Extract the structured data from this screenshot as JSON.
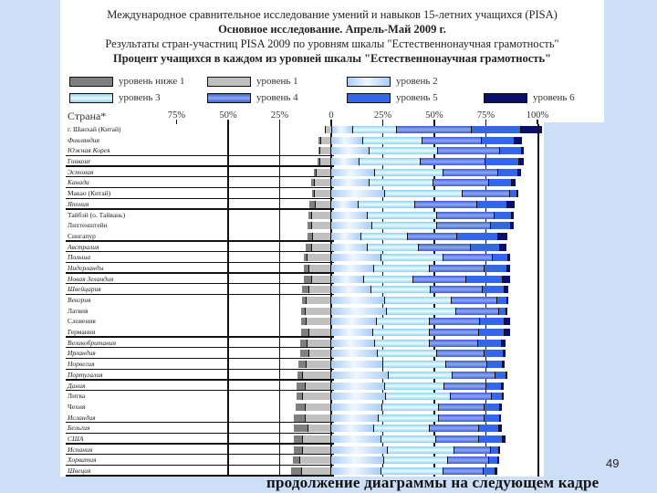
{
  "header": {
    "line1": "Международное сравнительное исследование умений и навыков 15-летних учащихся (PISA)",
    "line2": "Основное исследование. Апрель-Май 2009 г.",
    "line3": "Результаты стран-участниц PISA 2009 по уровням шкалы \"Естественнонаучная грамотность\"",
    "line4": "Процент учащихся в каждом из уровней шкалы \"Естественнонаучная грамотность\""
  },
  "legend": [
    {
      "label": "уровень ниже 1",
      "color": "#7f7f7f"
    },
    {
      "label": "уровень 1",
      "color": "#c0c0c0"
    },
    {
      "label": "уровень 2",
      "color": "#cfe3fb"
    },
    {
      "label": "уровень 3",
      "color": "#bdeaf8"
    },
    {
      "label": "уровень 4",
      "color": "#5d7fe0"
    },
    {
      "label": "уровень 5",
      "color": "#3466e8"
    },
    {
      "label": "уровень 6",
      "color": "#0a0f6e"
    }
  ],
  "axis": {
    "country_header": "Страна*",
    "ticks": [
      "75%",
      "50%",
      "25%",
      "0",
      "25%",
      "50%",
      "75%",
      "100%"
    ]
  },
  "page_number": "49",
  "footer_text": "продолжение диаграммы на следующем кадре",
  "chart_data": {
    "type": "bar",
    "subtype": "diverging-stacked-horizontal",
    "title": "Процент учащихся в каждом из уровней шкалы \"Естественнонаучная грамотность\"",
    "xlabel": "",
    "ylabel": "Страна*",
    "xlim": [
      -75,
      100
    ],
    "x_ticks": [
      "75%",
      "50%",
      "25%",
      "0",
      "25%",
      "50%",
      "75%",
      "100%"
    ],
    "legend_position": "top",
    "series_names": [
      "уровень ниже 1",
      "уровень 1",
      "уровень 2",
      "уровень 3",
      "уровень 4",
      "уровень 5",
      "уровень 6"
    ],
    "categories": [
      "г. Шанхай (Китай)",
      "Финляндия",
      "Южная Корея",
      "Гонконг",
      "Эстония",
      "Канада",
      "Макао (Китай)",
      "Япония",
      "Тайбэй (о. Тайвань)",
      "Лихтенштейн",
      "Сингапур",
      "Австралия",
      "Польша",
      "Нидерланды",
      "Новая Зеландия",
      "Швейцария",
      "Венгрия",
      "Латвия",
      "Словения",
      "Германия",
      "Великобритания",
      "Ирландия",
      "Норвегия",
      "Португалия",
      "Дания",
      "Литва",
      "Чехия",
      "Исландия",
      "Бельгия",
      "США",
      "Испания",
      "Хорватия",
      "Швеция"
    ],
    "italic": [
      false,
      true,
      true,
      false,
      true,
      true,
      false,
      true,
      false,
      false,
      false,
      true,
      true,
      true,
      true,
      true,
      true,
      false,
      false,
      false,
      true,
      true,
      true,
      true,
      true,
      false,
      false,
      true,
      true,
      true,
      true,
      true,
      true
    ],
    "separator_after": [
      false,
      false,
      true,
      true,
      true,
      true,
      true,
      true,
      false,
      false,
      true,
      true,
      true,
      true,
      true,
      true,
      false,
      false,
      false,
      true,
      true,
      true,
      true,
      true,
      true,
      false,
      false,
      true,
      true,
      true,
      true,
      true,
      true
    ],
    "series": [
      {
        "name": "уровень ниже 1",
        "values": [
          0.1,
          1.1,
          0.9,
          1.4,
          1.3,
          1.8,
          1.5,
          3.2,
          2.1,
          2.2,
          2.8,
          3.1,
          2.0,
          2.6,
          4.1,
          3.3,
          2.2,
          2.2,
          3.0,
          4.1,
          3.6,
          4.4,
          3.9,
          2.6,
          4.3,
          3.4,
          4.7,
          5.4,
          7.2,
          4.2,
          4.3,
          3.6,
          5.3
        ]
      },
      {
        "name": "уровень 1",
        "values": [
          3.1,
          4.9,
          5.4,
          5.2,
          7.0,
          7.8,
          8.0,
          7.5,
          9.1,
          9.3,
          8.7,
          9.5,
          11.3,
          10.6,
          9.2,
          10.8,
          12.0,
          12.5,
          11.8,
          10.7,
          11.4,
          10.7,
          11.9,
          13.9,
          12.3,
          13.6,
          12.6,
          12.6,
          10.9,
          13.9,
          13.9,
          14.9,
          14.0
        ]
      },
      {
        "name": "уровень 2",
        "values": [
          10.5,
          15.3,
          18.5,
          13.9,
          21.1,
          18.6,
          26.2,
          13.3,
          17.8,
          20.1,
          14.4,
          17.6,
          24.5,
          20.8,
          16.0,
          19.5,
          26.0,
          27.2,
          22.0,
          20.4,
          21.1,
          22.6,
          25.4,
          27.9,
          25.9,
          26.7,
          24.8,
          23.2,
          20.7,
          24.4,
          27.5,
          25.8,
          24.4
        ]
      },
      {
        "name": "уровень 3",
        "values": [
          21.0,
          28.8,
          33.1,
          29.4,
          33.5,
          31.1,
          37.4,
          27.4,
          33.5,
          31.1,
          22.7,
          25.0,
          30.0,
          27.2,
          23.9,
          28.7,
          32.6,
          33.5,
          25.9,
          27.3,
          26.6,
          28.6,
          30.3,
          31.0,
          28.8,
          31.1,
          27.5,
          29.1,
          27.0,
          26.7,
          32.3,
          30.8,
          30.2
        ]
      },
      {
        "name": "уровень 4",
        "values": [
          36.1,
          28.8,
          30.2,
          31.7,
          26.5,
          26.7,
          23.0,
          30.2,
          28.1,
          26.2,
          24.0,
          25.0,
          23.8,
          26.2,
          25.5,
          25.4,
          21.8,
          20.6,
          24.4,
          24.2,
          23.5,
          23.3,
          20.2,
          20.9,
          20.6,
          20.2,
          22.1,
          22.0,
          24.0,
          20.8,
          17.6,
          19.8,
          19.1
        ]
      },
      {
        "name": "уровень 5",
        "values": [
          24.3,
          16.2,
          10.7,
          16.2,
          9.6,
          11.4,
          3.7,
          14.7,
          8.2,
          9.9,
          19.9,
          14.4,
          7.6,
          11.4,
          17.6,
          10.7,
          4.9,
          3.7,
          11.6,
          12.2,
          11.5,
          9.0,
          7.5,
          5.0,
          7.4,
          5.4,
          7.5,
          7.4,
          9.8,
          11.3,
          4.1,
          4.6,
          6.0
        ]
      },
      {
        "name": "уровень 6",
        "values": [
          9.8,
          3.3,
          1.1,
          2.0,
          1.4,
          1.6,
          0.2,
          3.4,
          0.8,
          1.2,
          4.6,
          3.1,
          0.8,
          1.2,
          3.6,
          1.6,
          0.5,
          0.3,
          2.9,
          2.8,
          1.9,
          1.2,
          0.8,
          0.1,
          1.1,
          0.2,
          0.8,
          0.3,
          1.4,
          1.3,
          0.2,
          0.3,
          1.0
        ]
      }
    ]
  }
}
